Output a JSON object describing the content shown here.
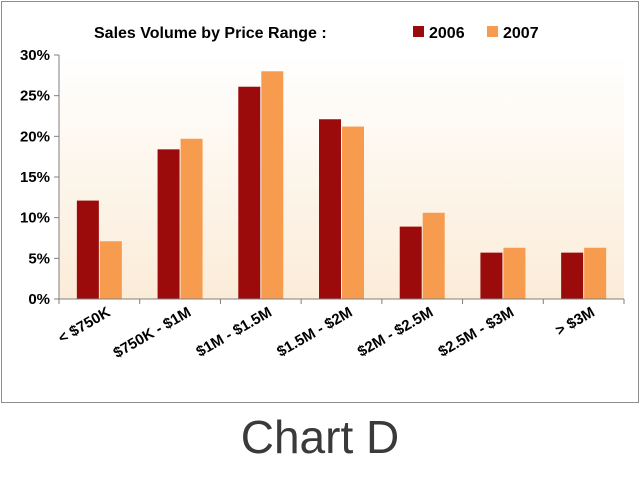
{
  "caption": "Chart D",
  "chart_data": {
    "type": "bar",
    "title": "Sales Volume  by Price Range :",
    "categories": [
      "< $750K",
      "$750K - $1M",
      "$1M - $1.5M",
      "$1.5M - $2M",
      "$2M - $2.5M",
      "$2.5M - $3M",
      "> $3M"
    ],
    "series": [
      {
        "name": "2006",
        "color": "#9c0b0b",
        "values": [
          12.1,
          18.4,
          26.1,
          22.1,
          8.9,
          5.7,
          5.7
        ]
      },
      {
        "name": "2007",
        "color": "#f79c4e",
        "values": [
          7.1,
          19.7,
          28.0,
          21.2,
          10.6,
          6.3,
          6.3
        ]
      }
    ],
    "y_ticks": [
      "0%",
      "5%",
      "10%",
      "15%",
      "20%",
      "25%",
      "30%"
    ],
    "ylim": [
      0,
      30
    ],
    "xlabel": "",
    "ylabel": "",
    "legend_position": "top-right",
    "grid": false,
    "plot_background": "#fdf5e8"
  }
}
